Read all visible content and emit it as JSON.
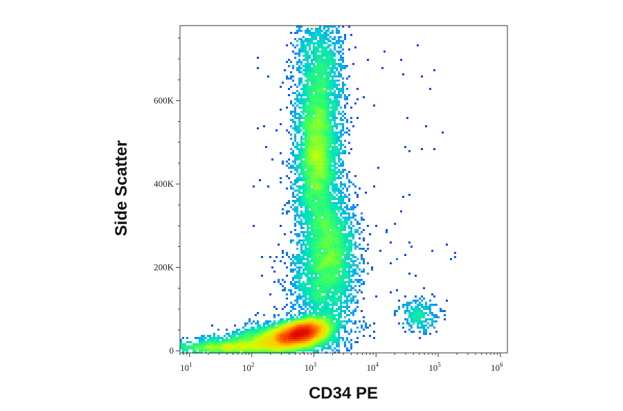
{
  "chart_data": {
    "type": "scatter",
    "subtype": "flow-cytometry-density-dot-plot",
    "xlabel": "CD34 PE",
    "ylabel": "Side Scatter",
    "x_scale": "log",
    "xlim": [
      7,
      1300000
    ],
    "ylim": [
      -5000,
      780000
    ],
    "x_ticks": [
      {
        "base": "10",
        "exp": "1",
        "value": 10
      },
      {
        "base": "10",
        "exp": "2",
        "value": 100
      },
      {
        "base": "10",
        "exp": "3",
        "value": 1000
      },
      {
        "base": "10",
        "exp": "4",
        "value": 10000
      },
      {
        "base": "10",
        "exp": "5",
        "value": 100000
      },
      {
        "base": "10",
        "exp": "6",
        "value": 1000000
      }
    ],
    "y_ticks": [
      {
        "label": "0",
        "value": 0
      },
      {
        "label": "200K",
        "value": 200000
      },
      {
        "label": "400K",
        "value": 400000
      },
      {
        "label": "600K",
        "value": 600000
      }
    ],
    "density_colormap": [
      "#0000ff",
      "#0099ff",
      "#00e0c0",
      "#33ff66",
      "#ccff00",
      "#ffcc00",
      "#ff5500",
      "#dd0000"
    ],
    "populations": [
      {
        "name": "",
        "x_median": 600,
        "y_median": 40000,
        "density": "highest"
      },
      {
        "name": "",
        "x_median": 1100,
        "y_median": 480000,
        "density": "medium"
      },
      {
        "name": "",
        "x_median": 2000,
        "y_median": 250000,
        "density": "low"
      },
      {
        "name": "",
        "x_median": 50000,
        "y_median": 85000,
        "density": "very-low"
      }
    ],
    "grid": false,
    "legend": "none"
  }
}
